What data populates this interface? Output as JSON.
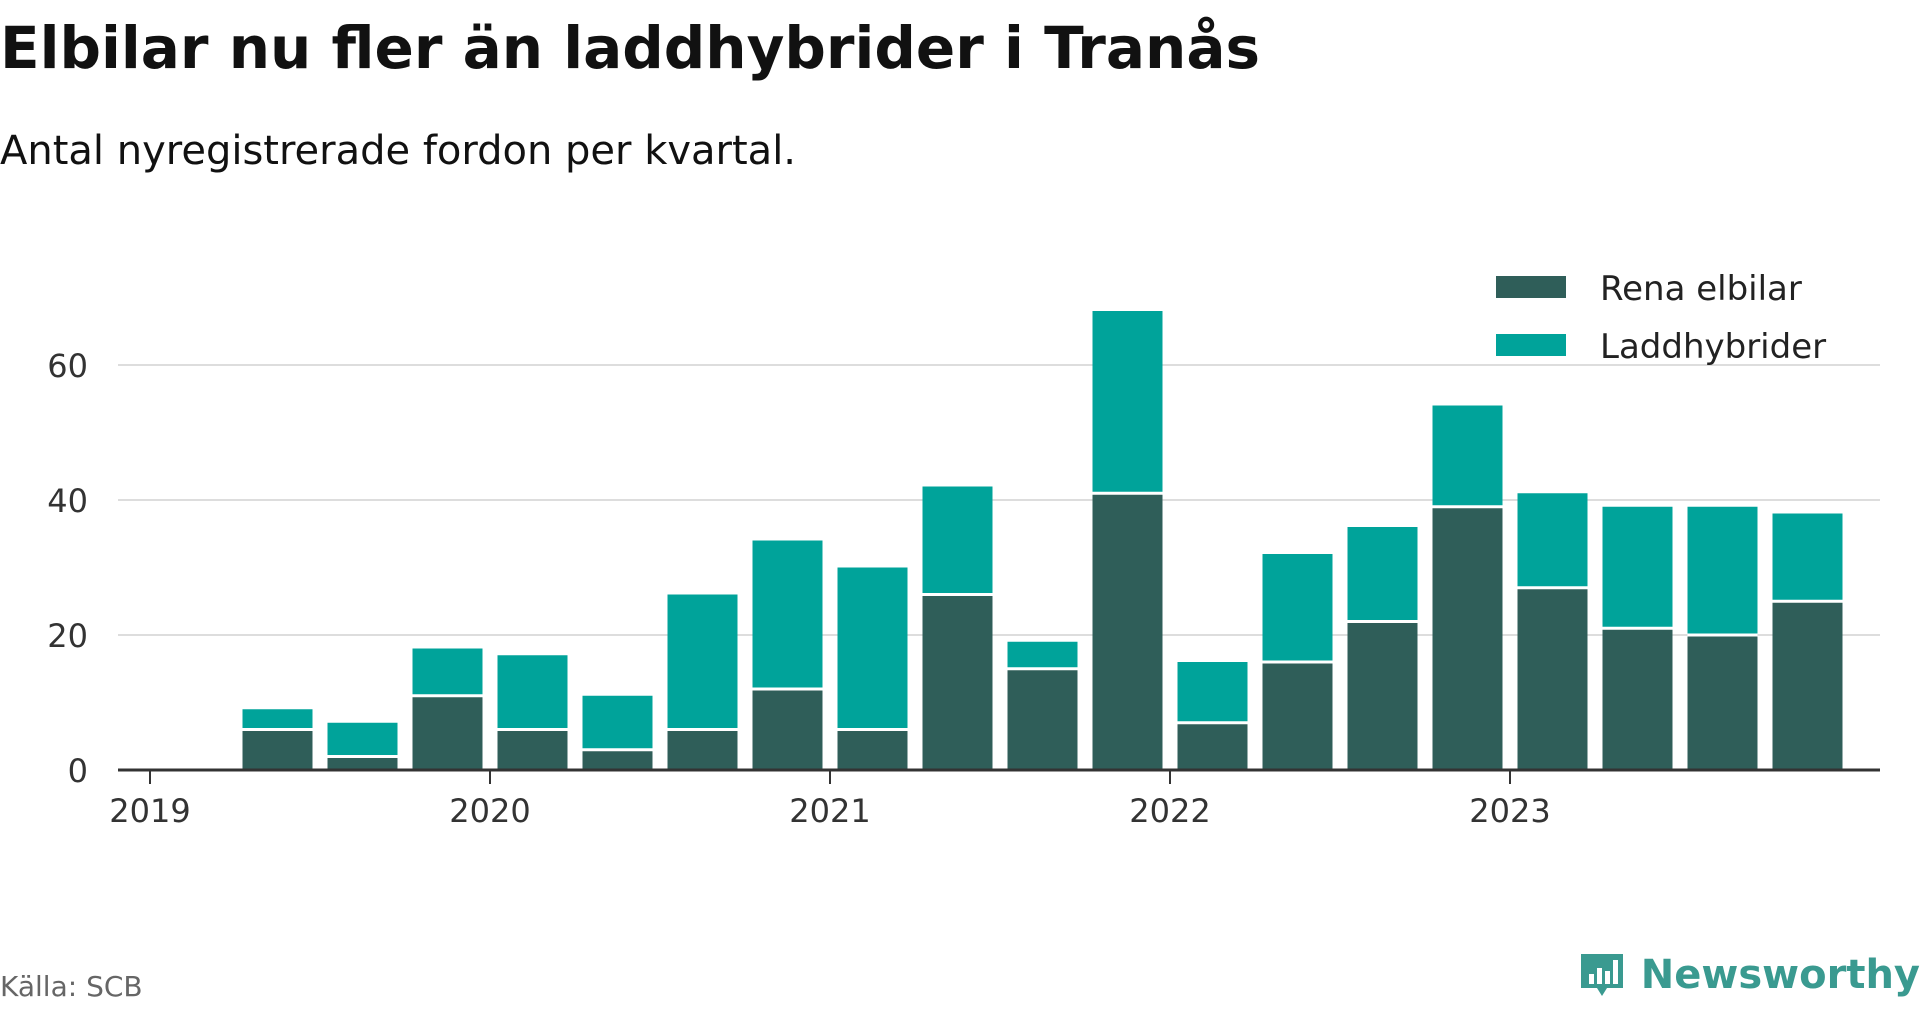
{
  "header": {
    "title": "Elbilar nu fler än laddhybrider i Tranås",
    "subtitle": "Antal nyregistrerade fordon per kvartal."
  },
  "footer": {
    "source": "Källa: SCB",
    "brand": "Newsworthy"
  },
  "colors": {
    "elbilar": "#2f5e59",
    "laddhybrider": "#00a39a",
    "grid": "#dddddd",
    "axis": "#333333",
    "brand": "#3a9a90"
  },
  "chart_data": {
    "type": "bar",
    "stacked": true,
    "title": "Elbilar nu fler än laddhybrider i Tranås",
    "subtitle": "Antal nyregistrerade fordon per kvartal.",
    "xlabel": "",
    "ylabel": "",
    "ylim": [
      0,
      70
    ],
    "yticks": [
      0,
      20,
      40,
      60
    ],
    "xticks": [
      "2019",
      "2020",
      "2021",
      "2022",
      "2023"
    ],
    "legend_position": "top-right",
    "grid": true,
    "categories": [
      "2019 Q2",
      "2019 Q3",
      "2019 Q4",
      "2020 Q1",
      "2020 Q2",
      "2020 Q3",
      "2020 Q4",
      "2021 Q1",
      "2021 Q2",
      "2021 Q3",
      "2021 Q4",
      "2022 Q1",
      "2022 Q2",
      "2022 Q3",
      "2022 Q4",
      "2023 Q1",
      "2023 Q2",
      "2023 Q3",
      "2023 Q4"
    ],
    "series": [
      {
        "name": "Rena elbilar",
        "values": [
          6,
          2,
          11,
          6,
          3,
          6,
          12,
          6,
          26,
          15,
          41,
          7,
          16,
          22,
          39,
          27,
          21,
          20,
          25
        ]
      },
      {
        "name": "Laddhybrider",
        "values": [
          3,
          5,
          7,
          11,
          8,
          20,
          22,
          24,
          16,
          4,
          27,
          9,
          16,
          14,
          15,
          14,
          18,
          19,
          13
        ]
      }
    ]
  }
}
